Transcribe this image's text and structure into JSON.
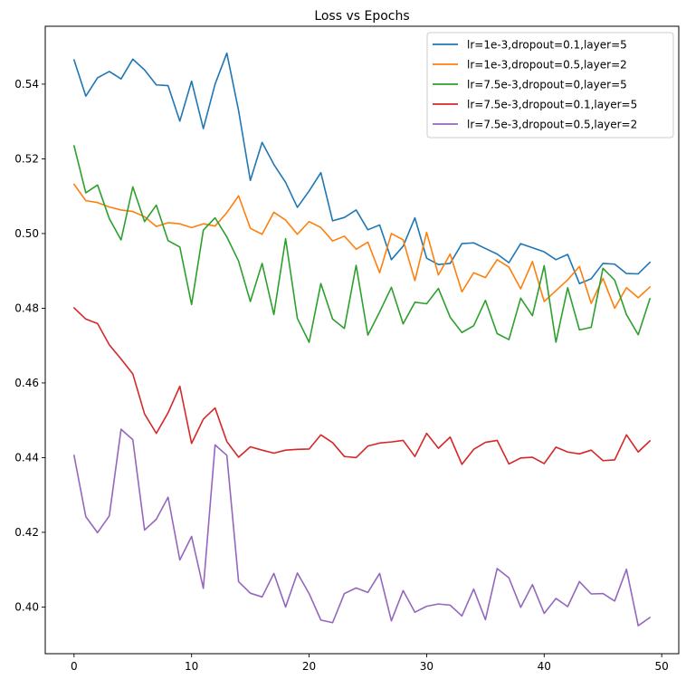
{
  "chart_data": {
    "type": "line",
    "title": "Loss vs Epochs",
    "xlabel": "",
    "ylabel": "",
    "xlim": [
      -2.45,
      51.45
    ],
    "ylim": [
      0.3875,
      0.5555
    ],
    "xticks": [
      0,
      10,
      20,
      30,
      40,
      50
    ],
    "yticks": [
      0.4,
      0.42,
      0.44,
      0.46,
      0.48,
      0.5,
      0.52,
      0.54
    ],
    "legend_position": "top-right",
    "grid": false,
    "x": [
      0,
      1,
      2,
      3,
      4,
      5,
      6,
      7,
      8,
      9,
      10,
      11,
      12,
      13,
      14,
      15,
      16,
      17,
      18,
      19,
      20,
      21,
      22,
      23,
      24,
      25,
      26,
      27,
      28,
      29,
      30,
      31,
      32,
      33,
      34,
      35,
      36,
      37,
      38,
      39,
      40,
      41,
      42,
      43,
      44,
      45,
      46,
      47,
      48,
      49
    ],
    "series": [
      {
        "name": "lr=1e-3,dropout=0.1,layer=5",
        "color": "#1f77b4",
        "values": [
          0.5465,
          0.5368,
          0.5417,
          0.5434,
          0.5414,
          0.5467,
          0.5438,
          0.5398,
          0.5396,
          0.5301,
          0.5408,
          0.5281,
          0.54,
          0.5483,
          0.5329,
          0.5142,
          0.5244,
          0.5185,
          0.5137,
          0.507,
          0.5114,
          0.5163,
          0.5034,
          0.5043,
          0.5063,
          0.501,
          0.5023,
          0.493,
          0.4966,
          0.5042,
          0.4934,
          0.4917,
          0.492,
          0.4973,
          0.4975,
          0.496,
          0.4945,
          0.4922,
          0.4973,
          0.4962,
          0.4951,
          0.493,
          0.4944,
          0.4866,
          0.4879,
          0.492,
          0.4918,
          0.4893,
          0.4892,
          0.4923
        ]
      },
      {
        "name": "lr=1e-3,dropout=0.5,layer=2",
        "color": "#ff7f0e",
        "values": [
          0.5132,
          0.5088,
          0.5083,
          0.5071,
          0.5063,
          0.5059,
          0.5045,
          0.5019,
          0.5029,
          0.5026,
          0.5016,
          0.5026,
          0.502,
          0.5056,
          0.5101,
          0.5014,
          0.4998,
          0.5057,
          0.5036,
          0.4998,
          0.5032,
          0.5016,
          0.498,
          0.4993,
          0.4958,
          0.4977,
          0.4895,
          0.5,
          0.4983,
          0.4874,
          0.5003,
          0.4889,
          0.4945,
          0.4844,
          0.4895,
          0.4882,
          0.493,
          0.491,
          0.4852,
          0.4925,
          0.4818,
          0.4847,
          0.4876,
          0.4912,
          0.4813,
          0.488,
          0.48,
          0.4855,
          0.4828,
          0.4857
        ]
      },
      {
        "name": "lr=7.5e-3,dropout=0,layer=5",
        "color": "#2ca02c",
        "values": [
          0.5235,
          0.5109,
          0.513,
          0.504,
          0.4983,
          0.5125,
          0.5032,
          0.5076,
          0.4981,
          0.4964,
          0.481,
          0.5009,
          0.5042,
          0.4991,
          0.4926,
          0.4818,
          0.492,
          0.4783,
          0.4986,
          0.4773,
          0.4709,
          0.4866,
          0.4771,
          0.4746,
          0.4915,
          0.4728,
          0.479,
          0.4856,
          0.4758,
          0.4816,
          0.4812,
          0.4853,
          0.4776,
          0.4735,
          0.4753,
          0.4821,
          0.4732,
          0.4716,
          0.4827,
          0.478,
          0.4914,
          0.4709,
          0.4855,
          0.4742,
          0.4749,
          0.4907,
          0.4875,
          0.4783,
          0.4729,
          0.4826
        ]
      },
      {
        "name": "lr=7.5e-3,dropout=0.1,layer=5",
        "color": "#d62728",
        "values": [
          0.4801,
          0.4771,
          0.4759,
          0.4702,
          0.4664,
          0.4624,
          0.4517,
          0.4465,
          0.452,
          0.4591,
          0.4438,
          0.4503,
          0.4533,
          0.4443,
          0.4401,
          0.4429,
          0.442,
          0.4412,
          0.442,
          0.4422,
          0.4423,
          0.4461,
          0.444,
          0.4403,
          0.44,
          0.4431,
          0.4439,
          0.4442,
          0.4446,
          0.4403,
          0.4465,
          0.4425,
          0.4455,
          0.4382,
          0.4422,
          0.4441,
          0.4446,
          0.4383,
          0.4399,
          0.4401,
          0.4384,
          0.4428,
          0.4415,
          0.441,
          0.442,
          0.4392,
          0.4394,
          0.4461,
          0.4415,
          0.4445
        ]
      },
      {
        "name": "lr=7.5e-3,dropout=0.5,layer=2",
        "color": "#9467bd",
        "values": [
          0.4406,
          0.4242,
          0.4199,
          0.4244,
          0.4476,
          0.4448,
          0.4206,
          0.4235,
          0.4294,
          0.4126,
          0.4189,
          0.405,
          0.4434,
          0.4406,
          0.4068,
          0.4037,
          0.4027,
          0.409,
          0.4,
          0.4091,
          0.4036,
          0.3965,
          0.3958,
          0.4036,
          0.4051,
          0.4039,
          0.409,
          0.3963,
          0.4044,
          0.3986,
          0.4002,
          0.4008,
          0.4005,
          0.3976,
          0.4048,
          0.3966,
          0.4103,
          0.4078,
          0.3999,
          0.406,
          0.3983,
          0.4023,
          0.4001,
          0.4068,
          0.4035,
          0.4036,
          0.4016,
          0.4101,
          0.395,
          0.3972
        ]
      }
    ]
  }
}
